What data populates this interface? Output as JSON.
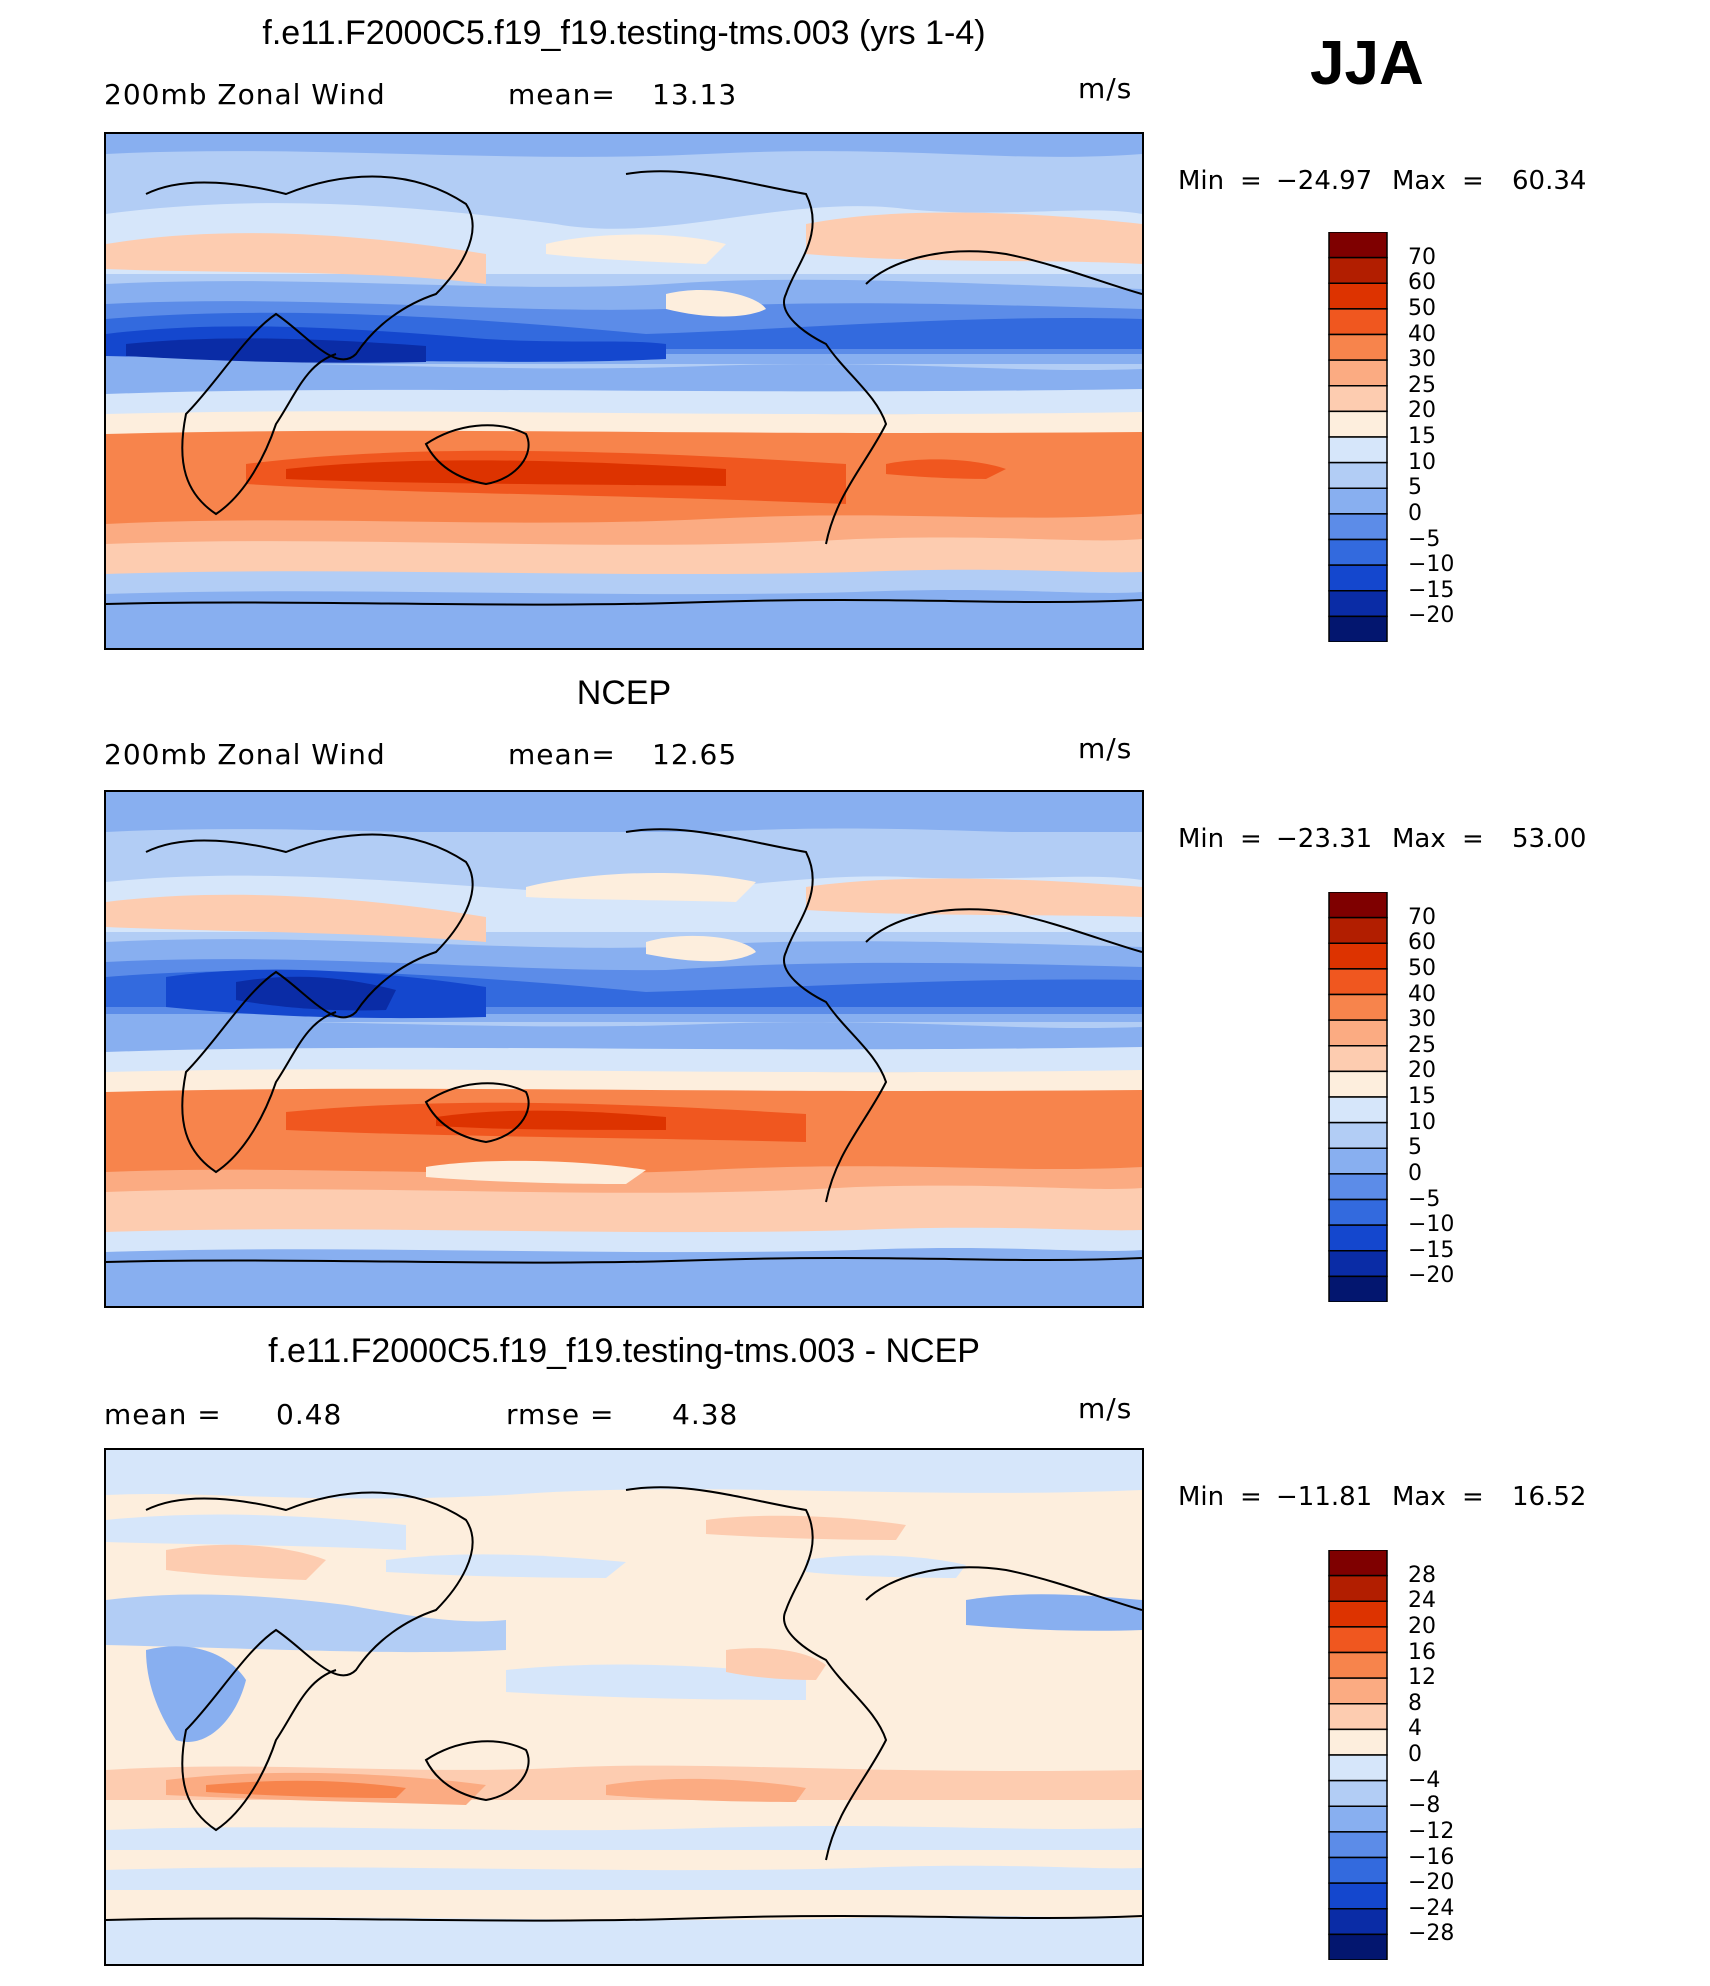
{
  "season": "JJA",
  "panels": [
    {
      "id": "model",
      "title": "f.e11.F2000C5.f19_f19.testing-tms.003 (yrs 1-4)",
      "left_label": "200mb Zonal Wind",
      "mid_label": "mean=",
      "mid_value": "13.13",
      "extra_label": "",
      "extra_value": "",
      "units": "m/s",
      "min_label": "Min",
      "min_value": "−24.97",
      "max_label": "Max",
      "max_value": "60.34",
      "colorbar_labels": [
        "70",
        "60",
        "50",
        "40",
        "30",
        "25",
        "20",
        "15",
        "10",
        "5",
        "0",
        "−5",
        "−10",
        "−15",
        "−20"
      ]
    },
    {
      "id": "obs",
      "title": "NCEP",
      "left_label": "200mb Zonal Wind",
      "mid_label": "mean=",
      "mid_value": "12.65",
      "extra_label": "",
      "extra_value": "",
      "units": "m/s",
      "min_label": "Min",
      "min_value": "−23.31",
      "max_label": "Max",
      "max_value": "53.00",
      "colorbar_labels": [
        "70",
        "60",
        "50",
        "40",
        "30",
        "25",
        "20",
        "15",
        "10",
        "5",
        "0",
        "−5",
        "−10",
        "−15",
        "−20"
      ]
    },
    {
      "id": "diff",
      "title": "f.e11.F2000C5.f19_f19.testing-tms.003 - NCEP",
      "left_label": "mean =",
      "left_value": "0.48",
      "mid_label": "rmse =",
      "mid_value": "4.38",
      "units": "m/s",
      "min_label": "Min",
      "min_value": "−11.81",
      "max_label": "Max",
      "max_value": "16.52",
      "colorbar_labels": [
        "28",
        "24",
        "20",
        "16",
        "12",
        "8",
        "4",
        "0",
        "−4",
        "−8",
        "−12",
        "−16",
        "−20",
        "−24",
        "−28"
      ]
    }
  ],
  "colors": {
    "abs_scale": [
      "#7f0000",
      "#b21e00",
      "#dd3300",
      "#f0571f",
      "#f7844c",
      "#fbab82",
      "#fdccb0",
      "#fdeedd",
      "#d6e6fa",
      "#b2cdf5",
      "#88aff0",
      "#5c8ce8",
      "#336ade",
      "#1447ce",
      "#0a2ca6",
      "#03166f"
    ],
    "diff_scale": [
      "#7f0000",
      "#b21e00",
      "#dd3300",
      "#f0571f",
      "#f7844c",
      "#fbab82",
      "#fdccb0",
      "#fdeedd",
      "#d6e6fa",
      "#b2cdf5",
      "#88aff0",
      "#5c8ce8",
      "#336ade",
      "#1447ce",
      "#0a2ca6",
      "#03166f"
    ]
  }
}
